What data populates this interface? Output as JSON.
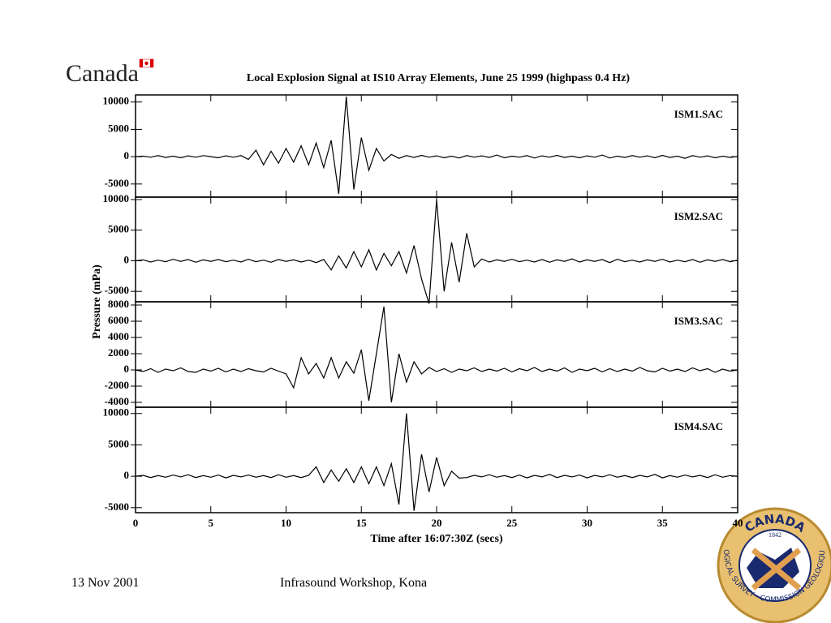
{
  "slide": {
    "logo": "Canada",
    "date": "13 Nov 2001",
    "event": "Infrasound Workshop, Kona",
    "seal": {
      "top": "CANADA",
      "year": "1842",
      "ring": "LOGICAL SURVEY - COMMISSION GÉOLOGIQUE"
    }
  },
  "figure": {
    "title": "Local Explosion Signal at IS10 Array Elements, June 25 1999 (highpass 0.4 Hz)",
    "x_label": "Time after 16:07:30Z (secs)",
    "y_label": "Pressure (mPa)"
  },
  "chart_data": [
    {
      "type": "line",
      "xlim": [
        0,
        40
      ],
      "xticks": [
        0,
        5,
        10,
        15,
        20,
        25,
        30,
        35,
        40
      ],
      "ylim": [
        -7400,
        11300
      ],
      "yticks": [
        -5000,
        0,
        5000,
        10000
      ],
      "grid": false,
      "x": [
        0,
        0.5,
        1,
        1.5,
        2,
        2.5,
        3,
        3.5,
        4,
        4.5,
        5,
        5.5,
        6,
        6.5,
        7,
        7.5,
        8,
        8.5,
        9,
        9.5,
        10,
        10.5,
        11,
        11.5,
        12,
        12.5,
        13,
        13.5,
        14,
        14.5,
        15,
        15.5,
        16,
        16.5,
        17,
        17.5,
        18,
        18.5,
        19,
        19.5,
        20,
        20.5,
        21,
        21.5,
        22,
        22.5,
        23,
        23.5,
        24,
        24.5,
        25,
        25.5,
        26,
        26.5,
        27,
        27.5,
        28,
        28.5,
        29,
        29.5,
        30,
        30.5,
        31,
        31.5,
        32,
        32.5,
        33,
        33.5,
        34,
        34.5,
        35,
        35.5,
        36,
        36.5,
        37,
        37.5,
        38,
        38.5,
        39,
        39.5,
        40
      ],
      "series": [
        {
          "name": "ISM1.SAC",
          "color": "#000000",
          "values": [
            0,
            100,
            -100,
            200,
            -150,
            100,
            -200,
            150,
            -100,
            200,
            0,
            -200,
            150,
            -100,
            200,
            -500,
            1200,
            -1500,
            1000,
            -1200,
            1500,
            -1000,
            2000,
            -1500,
            2500,
            -2000,
            3000,
            -6800,
            11000,
            -6000,
            3500,
            -2500,
            1500,
            -800,
            400,
            -300,
            200,
            -150,
            250,
            -100,
            150,
            -200,
            100,
            -250,
            200,
            -100,
            150,
            -150,
            300,
            -200,
            100,
            -100,
            200,
            -250,
            150,
            -100,
            250,
            -150,
            100,
            -200,
            150,
            -100,
            300,
            -250,
            100,
            -150,
            200,
            -100,
            150,
            -200,
            250,
            -150,
            100,
            -300,
            200,
            -100,
            150,
            -200,
            100,
            -150,
            50
          ]
        }
      ]
    },
    {
      "type": "line",
      "xlim": [
        0,
        40
      ],
      "xticks": [
        0,
        5,
        10,
        15,
        20,
        25,
        30,
        35,
        40
      ],
      "ylim": [
        -6700,
        10400
      ],
      "yticks": [
        -5000,
        0,
        5000,
        10000
      ],
      "grid": false,
      "x": [
        0,
        0.5,
        1,
        1.5,
        2,
        2.5,
        3,
        3.5,
        4,
        4.5,
        5,
        5.5,
        6,
        6.5,
        7,
        7.5,
        8,
        8.5,
        9,
        9.5,
        10,
        10.5,
        11,
        11.5,
        12,
        12.5,
        13,
        13.5,
        14,
        14.5,
        15,
        15.5,
        16,
        16.5,
        17,
        17.5,
        18,
        18.5,
        19,
        19.5,
        20,
        20.5,
        21,
        21.5,
        22,
        22.5,
        23,
        23.5,
        24,
        24.5,
        25,
        25.5,
        26,
        26.5,
        27,
        27.5,
        28,
        28.5,
        29,
        29.5,
        30,
        30.5,
        31,
        31.5,
        32,
        32.5,
        33,
        33.5,
        34,
        34.5,
        35,
        35.5,
        36,
        36.5,
        37,
        37.5,
        38,
        38.5,
        39,
        39.5,
        40
      ],
      "series": [
        {
          "name": "ISM2.SAC",
          "color": "#000000",
          "values": [
            0,
            150,
            -200,
            100,
            -150,
            250,
            -100,
            200,
            -250,
            150,
            -100,
            200,
            -150,
            100,
            -200,
            250,
            -150,
            100,
            -250,
            200,
            -100,
            150,
            -200,
            100,
            -300,
            200,
            -1500,
            800,
            -1200,
            1500,
            -1000,
            1800,
            -1500,
            1200,
            -800,
            1500,
            -2000,
            2500,
            -3000,
            -7000,
            10000,
            -5000,
            3000,
            -3500,
            4500,
            -1000,
            300,
            -200,
            150,
            -100,
            250,
            -150,
            100,
            -200,
            200,
            -250,
            150,
            -100,
            300,
            -200,
            150,
            -100,
            200,
            -300,
            250,
            -150,
            100,
            -200,
            150,
            -100,
            250,
            -200,
            100,
            -150,
            200,
            -250,
            150,
            -100,
            200,
            -150,
            100
          ]
        }
      ]
    },
    {
      "type": "line",
      "xlim": [
        0,
        40
      ],
      "xticks": [
        0,
        5,
        10,
        15,
        20,
        25,
        30,
        35,
        40
      ],
      "ylim": [
        -4600,
        8400
      ],
      "yticks": [
        -4000,
        -2000,
        0,
        2000,
        4000,
        6000,
        8000
      ],
      "grid": false,
      "x": [
        0,
        0.5,
        1,
        1.5,
        2,
        2.5,
        3,
        3.5,
        4,
        4.5,
        5,
        5.5,
        6,
        6.5,
        7,
        7.5,
        8,
        8.5,
        9,
        9.5,
        10,
        10.5,
        11,
        11.5,
        12,
        12.5,
        13,
        13.5,
        14,
        14.5,
        15,
        15.5,
        16,
        16.5,
        17,
        17.5,
        18,
        18.5,
        19,
        19.5,
        20,
        20.5,
        21,
        21.5,
        22,
        22.5,
        23,
        23.5,
        24,
        24.5,
        25,
        25.5,
        26,
        26.5,
        27,
        27.5,
        28,
        28.5,
        29,
        29.5,
        30,
        30.5,
        31,
        31.5,
        32,
        32.5,
        33,
        33.5,
        34,
        34.5,
        35,
        35.5,
        36,
        36.5,
        37,
        37.5,
        38,
        38.5,
        39,
        39.5,
        40
      ],
      "series": [
        {
          "name": "ISM3.SAC",
          "color": "#000000",
          "values": [
            0,
            -200,
            150,
            -300,
            100,
            -100,
            250,
            -200,
            -300,
            100,
            -150,
            200,
            -250,
            100,
            -200,
            150,
            -100,
            -250,
            200,
            -150,
            -500,
            -2200,
            1500,
            -500,
            800,
            -1000,
            1500,
            -1000,
            1000,
            -400,
            2500,
            -3800,
            2000,
            7800,
            -4000,
            2000,
            -1500,
            1000,
            -500,
            300,
            -200,
            150,
            -300,
            100,
            -100,
            250,
            -200,
            100,
            -150,
            200,
            -250,
            150,
            -100,
            300,
            -200,
            100,
            -150,
            250,
            -300,
            100,
            -100,
            200,
            -250,
            150,
            -200,
            100,
            -150,
            300,
            -100,
            -250,
            200,
            -150,
            100,
            -200,
            250,
            -100,
            150,
            -300,
            100,
            -150,
            0
          ]
        }
      ]
    },
    {
      "type": "line",
      "xlim": [
        0,
        40
      ],
      "xticks": [
        0,
        5,
        10,
        15,
        20,
        25,
        30,
        35,
        40
      ],
      "ylim": [
        -5800,
        11000
      ],
      "yticks": [
        -5000,
        0,
        5000,
        10000
      ],
      "grid": false,
      "x": [
        0,
        0.5,
        1,
        1.5,
        2,
        2.5,
        3,
        3.5,
        4,
        4.5,
        5,
        5.5,
        6,
        6.5,
        7,
        7.5,
        8,
        8.5,
        9,
        9.5,
        10,
        10.5,
        11,
        11.5,
        12,
        12.5,
        13,
        13.5,
        14,
        14.5,
        15,
        15.5,
        16,
        16.5,
        17,
        17.5,
        18,
        18.5,
        19,
        19.5,
        20,
        20.5,
        21,
        21.5,
        22,
        22.5,
        23,
        23.5,
        24,
        24.5,
        25,
        25.5,
        26,
        26.5,
        27,
        27.5,
        28,
        28.5,
        29,
        29.5,
        30,
        30.5,
        31,
        31.5,
        32,
        32.5,
        33,
        33.5,
        34,
        34.5,
        35,
        35.5,
        36,
        36.5,
        37,
        37.5,
        38,
        38.5,
        39,
        39.5,
        40
      ],
      "series": [
        {
          "name": "ISM4.SAC",
          "color": "#000000",
          "values": [
            0,
            150,
            -200,
            100,
            -150,
            200,
            -100,
            250,
            -200,
            100,
            -150,
            200,
            -250,
            150,
            -100,
            200,
            -150,
            100,
            -200,
            250,
            -150,
            100,
            -200,
            150,
            1500,
            -1000,
            1000,
            -800,
            1200,
            -1000,
            1500,
            -1200,
            1500,
            -1500,
            2000,
            -4500,
            10000,
            -5500,
            3500,
            -2500,
            3000,
            -1500,
            800,
            -300,
            -200,
            150,
            -100,
            250,
            -150,
            100,
            -200,
            200,
            -250,
            150,
            -100,
            300,
            -200,
            150,
            -100,
            200,
            -250,
            150,
            -100,
            250,
            -150,
            100,
            -200,
            150,
            -100,
            300,
            -250,
            100,
            -150,
            200,
            -100,
            150,
            -200,
            250,
            -150,
            100,
            0
          ]
        }
      ]
    }
  ]
}
